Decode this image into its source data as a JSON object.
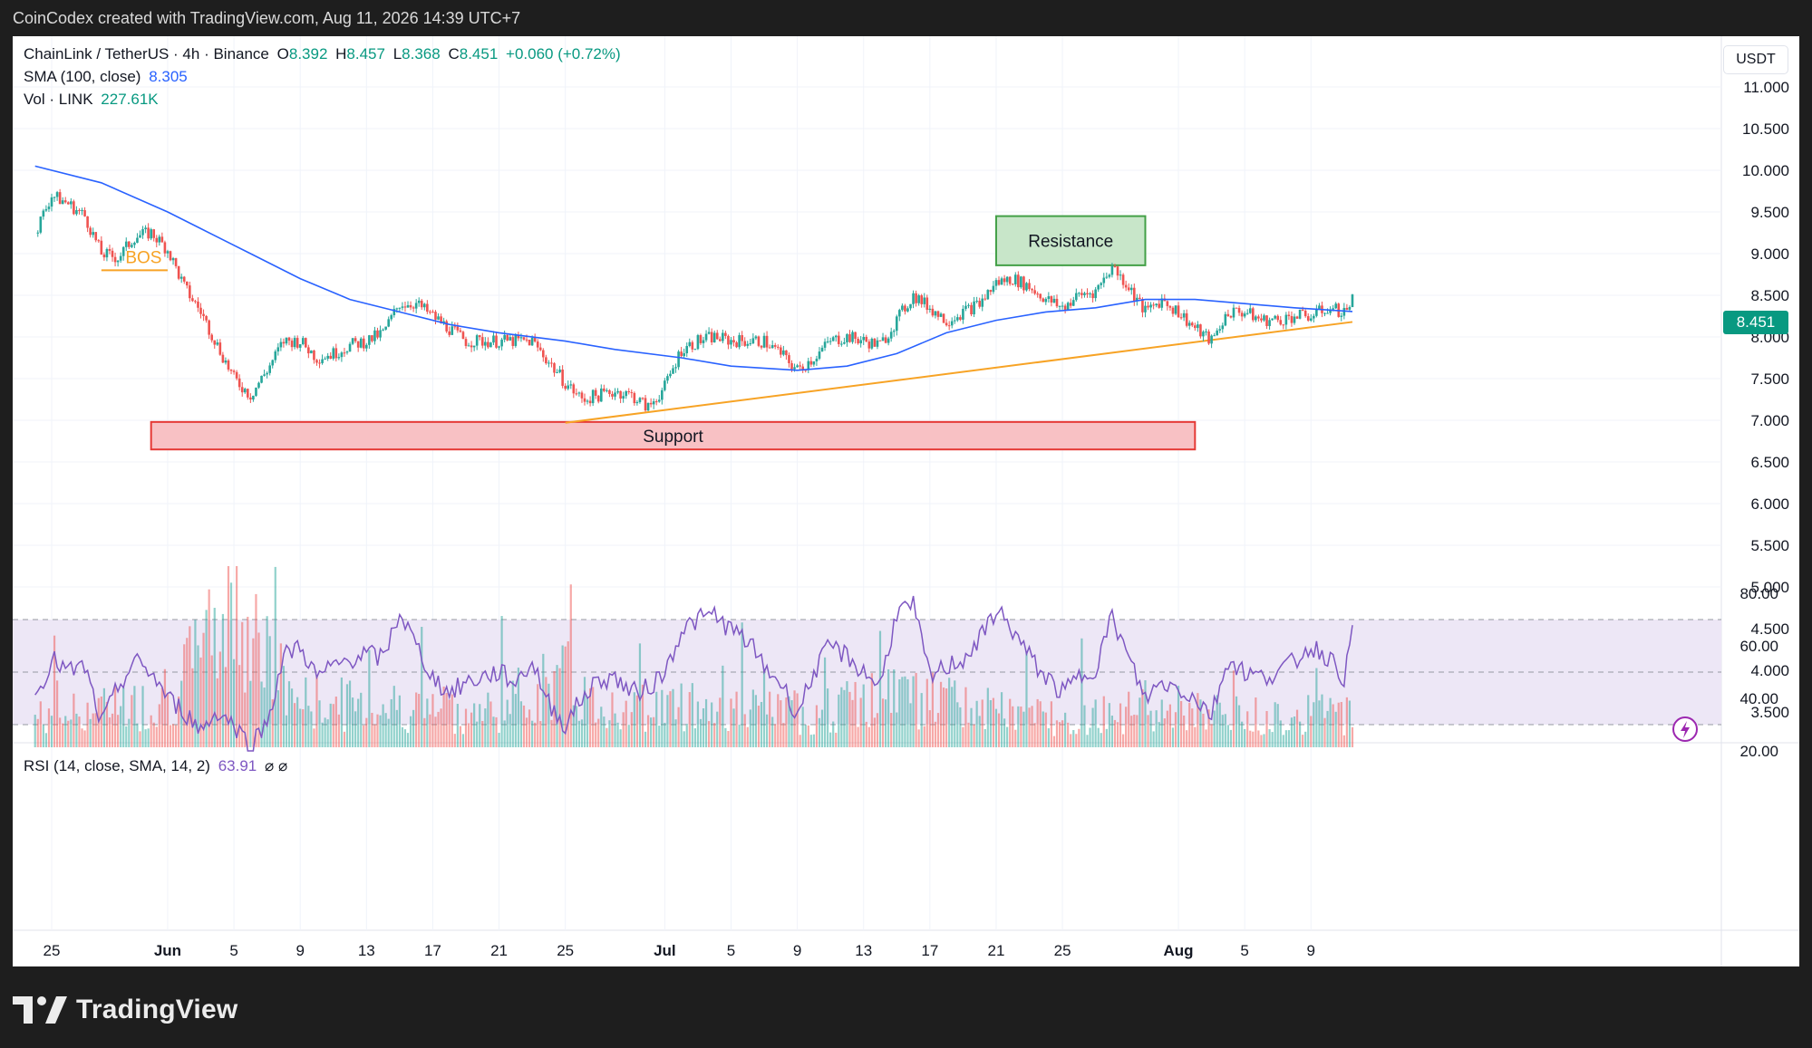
{
  "header": {
    "text": "CoinCodex created with TradingView.com, Aug 11, 2026 14:39 UTC+7"
  },
  "legend": {
    "symbol": "ChainLink / TetherUS · 4h · Binance",
    "o_label": "O",
    "o_value": "8.392",
    "h_label": "H",
    "h_value": "8.457",
    "l_label": "L",
    "l_value": "8.368",
    "c_label": "C",
    "c_value": "8.451",
    "change": "+0.060 (+0.72%)",
    "sma_label": "SMA (100, close)",
    "sma_value": "8.305",
    "vol_label": "Vol · LINK",
    "vol_value": "227.61K",
    "rsi_label": "RSI (14, close, SMA, 14, 2)",
    "rsi_value": "63.91",
    "rsi_extra": "⌀ ⌀"
  },
  "currency_button": "USDT",
  "last_price": "8.451",
  "footer": {
    "brand": "TradingView",
    "logo_icon": "tradingview-logo-icon"
  },
  "colors": {
    "up": "#26a69a",
    "down": "#ef5350",
    "sma": "#2962ff",
    "trendline": "#f7a325",
    "rsi": "#7e57c2",
    "rsi_band": "#ede7f6",
    "support_fill": "#f8c1c4",
    "support_border": "#e53935",
    "resistance_fill": "#c8e6c9",
    "resistance_border": "#43a047"
  },
  "chart_data": {
    "type": "candlestick",
    "price_axis": {
      "ticks": [
        "11.000",
        "10.500",
        "10.000",
        "9.500",
        "9.000",
        "8.500",
        "8.000",
        "7.500",
        "7.000",
        "6.500",
        "6.000",
        "5.500",
        "5.000",
        "4.500",
        "4.000",
        "3.500"
      ],
      "ylim": [
        3.5,
        11.0
      ]
    },
    "rsi_axis": {
      "ticks": [
        "80.00",
        "60.00",
        "40.00",
        "20.00"
      ],
      "ylim": [
        20,
        80
      ],
      "bands": [
        30,
        50,
        70
      ]
    },
    "x_ticks": [
      {
        "label": "25",
        "date": "2026-05-25"
      },
      {
        "label": "Jun",
        "date": "2026-06-01"
      },
      {
        "label": "5",
        "date": "2026-06-05"
      },
      {
        "label": "9",
        "date": "2026-06-09"
      },
      {
        "label": "13",
        "date": "2026-06-13"
      },
      {
        "label": "17",
        "date": "2026-06-17"
      },
      {
        "label": "21",
        "date": "2026-06-21"
      },
      {
        "label": "25",
        "date": "2026-06-25"
      },
      {
        "label": "Jul",
        "date": "2026-07-01"
      },
      {
        "label": "5",
        "date": "2026-07-05"
      },
      {
        "label": "9",
        "date": "2026-07-09"
      },
      {
        "label": "13",
        "date": "2026-07-13"
      },
      {
        "label": "17",
        "date": "2026-07-17"
      },
      {
        "label": "21",
        "date": "2026-07-21"
      },
      {
        "label": "25",
        "date": "2026-07-25"
      },
      {
        "label": "Aug",
        "date": "2026-08-01"
      },
      {
        "label": "5",
        "date": "2026-08-05"
      },
      {
        "label": "9",
        "date": "2026-08-09"
      }
    ],
    "price_path": [
      [
        "2026-05-24",
        9.25
      ],
      [
        "2026-05-25",
        9.7
      ],
      [
        "2026-05-26",
        9.6
      ],
      [
        "2026-05-27",
        9.45
      ],
      [
        "2026-05-28",
        9.0
      ],
      [
        "2026-05-29",
        8.95
      ],
      [
        "2026-05-30",
        9.2
      ],
      [
        "2026-05-31",
        9.25
      ],
      [
        "2026-06-01",
        9.05
      ],
      [
        "2026-06-02",
        8.6
      ],
      [
        "2026-06-03",
        8.3
      ],
      [
        "2026-06-04",
        7.9
      ],
      [
        "2026-06-05",
        7.5
      ],
      [
        "2026-06-06",
        7.3
      ],
      [
        "2026-06-07",
        7.6
      ],
      [
        "2026-06-08",
        7.95
      ],
      [
        "2026-06-09",
        7.95
      ],
      [
        "2026-06-10",
        7.75
      ],
      [
        "2026-06-11",
        7.8
      ],
      [
        "2026-06-12",
        7.9
      ],
      [
        "2026-06-13",
        7.95
      ],
      [
        "2026-06-14",
        8.05
      ],
      [
        "2026-06-15",
        8.4
      ],
      [
        "2026-06-16",
        8.4
      ],
      [
        "2026-06-17",
        8.25
      ],
      [
        "2026-06-18",
        8.1
      ],
      [
        "2026-06-19",
        7.95
      ],
      [
        "2026-06-20",
        7.95
      ],
      [
        "2026-06-21",
        7.95
      ],
      [
        "2026-06-22",
        7.95
      ],
      [
        "2026-06-23",
        7.95
      ],
      [
        "2026-06-24",
        7.7
      ],
      [
        "2026-06-25",
        7.45
      ],
      [
        "2026-06-26",
        7.25
      ],
      [
        "2026-06-27",
        7.3
      ],
      [
        "2026-06-28",
        7.35
      ],
      [
        "2026-06-29",
        7.3
      ],
      [
        "2026-06-30",
        7.15
      ],
      [
        "2026-07-01",
        7.4
      ],
      [
        "2026-07-02",
        7.85
      ],
      [
        "2026-07-03",
        7.95
      ],
      [
        "2026-07-04",
        8.0
      ],
      [
        "2026-07-05",
        7.95
      ],
      [
        "2026-07-06",
        7.95
      ],
      [
        "2026-07-07",
        7.95
      ],
      [
        "2026-07-08",
        7.8
      ],
      [
        "2026-07-09",
        7.6
      ],
      [
        "2026-07-10",
        7.75
      ],
      [
        "2026-07-11",
        7.95
      ],
      [
        "2026-07-12",
        8.0
      ],
      [
        "2026-07-13",
        7.95
      ],
      [
        "2026-07-14",
        7.9
      ],
      [
        "2026-07-15",
        8.2
      ],
      [
        "2026-07-16",
        8.5
      ],
      [
        "2026-07-17",
        8.35
      ],
      [
        "2026-07-18",
        8.2
      ],
      [
        "2026-07-19",
        8.3
      ],
      [
        "2026-07-20",
        8.4
      ],
      [
        "2026-07-21",
        8.65
      ],
      [
        "2026-07-22",
        8.7
      ],
      [
        "2026-07-23",
        8.6
      ],
      [
        "2026-07-24",
        8.45
      ],
      [
        "2026-07-25",
        8.35
      ],
      [
        "2026-07-26",
        8.5
      ],
      [
        "2026-07-27",
        8.55
      ],
      [
        "2026-07-28",
        8.85
      ],
      [
        "2026-07-29",
        8.6
      ],
      [
        "2026-07-30",
        8.3
      ],
      [
        "2026-07-31",
        8.45
      ],
      [
        "2026-08-01",
        8.3
      ],
      [
        "2026-08-02",
        8.1
      ],
      [
        "2026-08-03",
        7.95
      ],
      [
        "2026-08-04",
        8.3
      ],
      [
        "2026-08-05",
        8.3
      ],
      [
        "2026-08-06",
        8.2
      ],
      [
        "2026-08-07",
        8.2
      ],
      [
        "2026-08-08",
        8.25
      ],
      [
        "2026-08-09",
        8.25
      ],
      [
        "2026-08-10",
        8.35
      ],
      [
        "2026-08-11",
        8.3
      ],
      [
        "2026-08-11T12",
        8.451
      ]
    ],
    "sma_path": [
      [
        "2026-05-24",
        10.05
      ],
      [
        "2026-05-28",
        9.85
      ],
      [
        "2026-06-01",
        9.5
      ],
      [
        "2026-06-03",
        9.3
      ],
      [
        "2026-06-06",
        9.0
      ],
      [
        "2026-06-09",
        8.7
      ],
      [
        "2026-06-12",
        8.45
      ],
      [
        "2026-06-15",
        8.3
      ],
      [
        "2026-06-18",
        8.15
      ],
      [
        "2026-06-21",
        8.05
      ],
      [
        "2026-06-25",
        7.95
      ],
      [
        "2026-06-28",
        7.85
      ],
      [
        "2026-07-02",
        7.75
      ],
      [
        "2026-07-05",
        7.65
      ],
      [
        "2026-07-09",
        7.6
      ],
      [
        "2026-07-12",
        7.65
      ],
      [
        "2026-07-15",
        7.8
      ],
      [
        "2026-07-18",
        8.05
      ],
      [
        "2026-07-21",
        8.2
      ],
      [
        "2026-07-24",
        8.3
      ],
      [
        "2026-07-27",
        8.35
      ],
      [
        "2026-07-30",
        8.45
      ],
      [
        "2026-08-02",
        8.45
      ],
      [
        "2026-08-05",
        8.4
      ],
      [
        "2026-08-08",
        8.35
      ],
      [
        "2026-08-11T12",
        8.305
      ]
    ],
    "rsi_path": [
      [
        "2026-05-24",
        40
      ],
      [
        "2026-05-25",
        55
      ],
      [
        "2026-05-26",
        50
      ],
      [
        "2026-05-27",
        52
      ],
      [
        "2026-05-28",
        30
      ],
      [
        "2026-05-29",
        44
      ],
      [
        "2026-05-30",
        54
      ],
      [
        "2026-05-31",
        50
      ],
      [
        "2026-06-01",
        40
      ],
      [
        "2026-06-02",
        35
      ],
      [
        "2026-06-03",
        28
      ],
      [
        "2026-06-04",
        35
      ],
      [
        "2026-06-05",
        30
      ],
      [
        "2026-06-06",
        22
      ],
      [
        "2026-06-07",
        31
      ],
      [
        "2026-06-08",
        56
      ],
      [
        "2026-06-09",
        60
      ],
      [
        "2026-06-10",
        48
      ],
      [
        "2026-06-11",
        52
      ],
      [
        "2026-06-12",
        55
      ],
      [
        "2026-06-13",
        57
      ],
      [
        "2026-06-14",
        55
      ],
      [
        "2026-06-15",
        73
      ],
      [
        "2026-06-16",
        60
      ],
      [
        "2026-06-17",
        48
      ],
      [
        "2026-06-18",
        42
      ],
      [
        "2026-06-19",
        46
      ],
      [
        "2026-06-20",
        48
      ],
      [
        "2026-06-21",
        50
      ],
      [
        "2026-06-22",
        46
      ],
      [
        "2026-06-23",
        54
      ],
      [
        "2026-06-24",
        38
      ],
      [
        "2026-06-25",
        30
      ],
      [
        "2026-06-26",
        40
      ],
      [
        "2026-06-27",
        47
      ],
      [
        "2026-06-28",
        48
      ],
      [
        "2026-06-29",
        42
      ],
      [
        "2026-06-30",
        44
      ],
      [
        "2026-07-01",
        50
      ],
      [
        "2026-07-02",
        66
      ],
      [
        "2026-07-03",
        70
      ],
      [
        "2026-07-04",
        72
      ],
      [
        "2026-07-05",
        66
      ],
      [
        "2026-07-06",
        62
      ],
      [
        "2026-07-07",
        52
      ],
      [
        "2026-07-08",
        46
      ],
      [
        "2026-07-09",
        34
      ],
      [
        "2026-07-10",
        50
      ],
      [
        "2026-07-11",
        60
      ],
      [
        "2026-07-12",
        56
      ],
      [
        "2026-07-13",
        50
      ],
      [
        "2026-07-14",
        45
      ],
      [
        "2026-07-15",
        73
      ],
      [
        "2026-07-16",
        75
      ],
      [
        "2026-07-17",
        48
      ],
      [
        "2026-07-18",
        52
      ],
      [
        "2026-07-19",
        55
      ],
      [
        "2026-07-20",
        62
      ],
      [
        "2026-07-21",
        74
      ],
      [
        "2026-07-22",
        66
      ],
      [
        "2026-07-23",
        56
      ],
      [
        "2026-07-24",
        48
      ],
      [
        "2026-07-25",
        42
      ],
      [
        "2026-07-26",
        48
      ],
      [
        "2026-07-27",
        52
      ],
      [
        "2026-07-28",
        71
      ],
      [
        "2026-07-29",
        55
      ],
      [
        "2026-07-30",
        40
      ],
      [
        "2026-07-31",
        46
      ],
      [
        "2026-08-01",
        44
      ],
      [
        "2026-08-02",
        40
      ],
      [
        "2026-08-03",
        34
      ],
      [
        "2026-08-04",
        55
      ],
      [
        "2026-08-05",
        50
      ],
      [
        "2026-08-06",
        48
      ],
      [
        "2026-08-07",
        50
      ],
      [
        "2026-08-08",
        54
      ],
      [
        "2026-08-09",
        60
      ],
      [
        "2026-08-10",
        56
      ],
      [
        "2026-08-11",
        48
      ],
      [
        "2026-08-11T12",
        63.91
      ]
    ],
    "volume_path": [
      [
        "2026-05-24",
        0.4
      ],
      [
        "2026-05-28",
        0.5
      ],
      [
        "2026-06-01",
        0.6
      ],
      [
        "2026-06-03",
        1.2
      ],
      [
        "2026-06-05",
        2.0
      ],
      [
        "2026-06-06",
        1.8
      ],
      [
        "2026-06-07",
        1.1
      ],
      [
        "2026-06-09",
        0.6
      ],
      [
        "2026-06-15",
        0.55
      ],
      [
        "2026-06-20",
        0.45
      ],
      [
        "2026-06-25",
        0.9
      ],
      [
        "2026-06-27",
        0.5
      ],
      [
        "2026-07-01",
        0.55
      ],
      [
        "2026-07-05",
        0.5
      ],
      [
        "2026-07-10",
        0.45
      ],
      [
        "2026-07-15",
        0.7
      ],
      [
        "2026-07-20",
        0.5
      ],
      [
        "2026-07-25",
        0.4
      ],
      [
        "2026-07-28",
        0.45
      ],
      [
        "2026-08-01",
        0.5
      ],
      [
        "2026-08-05",
        0.4
      ],
      [
        "2026-08-11T12",
        0.45
      ]
    ],
    "annotations": {
      "support": {
        "label": "Support",
        "price_low": 6.65,
        "price_high": 6.98,
        "from": "2026-05-31",
        "to": "2026-08-02"
      },
      "resistance": {
        "label": "Resistance",
        "price_low": 8.86,
        "price_high": 9.45,
        "from": "2026-07-21",
        "to": "2026-07-30"
      },
      "bos": {
        "label": "BOS",
        "price": 8.8,
        "from": "2026-05-28",
        "to": "2026-06-01"
      },
      "trendline": {
        "from": [
          "2026-06-25",
          6.97
        ],
        "to": [
          "2026-08-11T12",
          8.18
        ]
      }
    }
  }
}
